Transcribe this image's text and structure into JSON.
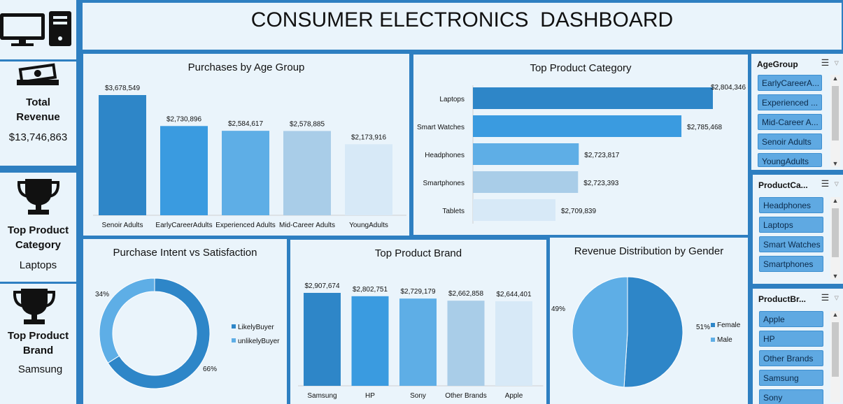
{
  "header": {
    "title": "CONSUMER ELECTRONICS  DASHBOARD"
  },
  "kpis": {
    "revenue": {
      "icon": "money-icon",
      "label_line1": "Total",
      "label_line2": "Revenue",
      "value": "$13,746,863"
    },
    "category": {
      "icon": "trophy-icon",
      "label_line1": "Top Product",
      "label_line2": "Category",
      "value": "Laptops"
    },
    "brand": {
      "icon": "trophy-icon",
      "label_line1": "Top Product",
      "label_line2": "Brand",
      "value": "Samsung"
    }
  },
  "colors": {
    "frame": "#2e7fc1",
    "panel": "#eaf4fb",
    "c1": "#2e86c8",
    "c2": "#3a9be0",
    "c3": "#5eaee6",
    "c4": "#a9cde8",
    "c5": "#d7e9f7"
  },
  "chart_data": [
    {
      "type": "bar",
      "title": "Purchases by Age Group",
      "categories": [
        "Senoir Adults",
        "EarlyCareerAdults",
        "Experienced Adults",
        "Mid-Career Adults",
        "YoungAdults"
      ],
      "values": [
        3678549,
        2730896,
        2584617,
        2578885,
        2173916
      ],
      "labels": [
        "$3,678,549",
        "$2,730,896",
        "$2,584,617",
        "$2,578,885",
        "$2,173,916"
      ]
    },
    {
      "type": "bar",
      "orientation": "horizontal",
      "title": "Top Product Category",
      "categories": [
        "Laptops",
        "Smart Watches",
        "Headphones",
        "Smartphones",
        "Tablets"
      ],
      "values": [
        2804346,
        2785468,
        2723817,
        2723393,
        2709839
      ],
      "labels": [
        "$2,804,346",
        "$2,785,468",
        "$2,723,817",
        "$2,723,393",
        "$2,709,839"
      ]
    },
    {
      "type": "pie",
      "variant": "donut",
      "title": "Purchase Intent vs Satisfaction",
      "categories": [
        "LikelyBuyer",
        "unlikelyBuyer"
      ],
      "values": [
        66,
        34
      ],
      "labels": [
        "66%",
        "34%"
      ],
      "legend": "right"
    },
    {
      "type": "bar",
      "title": "Top Product Brand",
      "categories": [
        "Samsung",
        "HP",
        "Sony",
        "Other Brands",
        "Apple"
      ],
      "values": [
        2907674,
        2802751,
        2729179,
        2662858,
        2644401
      ],
      "labels": [
        "$2,907,674",
        "$2,802,751",
        "$2,729,179",
        "$2,662,858",
        "$2,644,401"
      ]
    },
    {
      "type": "pie",
      "title": "Revenue Distribution by Gender",
      "categories": [
        "Female",
        "Male"
      ],
      "values": [
        51,
        49
      ],
      "labels": [
        "51%",
        "49%"
      ],
      "legend": "right"
    }
  ],
  "slicers": [
    {
      "title": "AgeGroup",
      "items": [
        "EarlyCareerA...",
        "Experienced ...",
        "Mid-Career A...",
        "Senoir Adults",
        "YoungAdults"
      ]
    },
    {
      "title": "ProductCa...",
      "items": [
        "Headphones",
        "Laptops",
        "Smart Watches",
        "Smartphones"
      ]
    },
    {
      "title": "ProductBr...",
      "items": [
        "Apple",
        "HP",
        "Other Brands",
        "Samsung",
        "Sony"
      ]
    }
  ]
}
